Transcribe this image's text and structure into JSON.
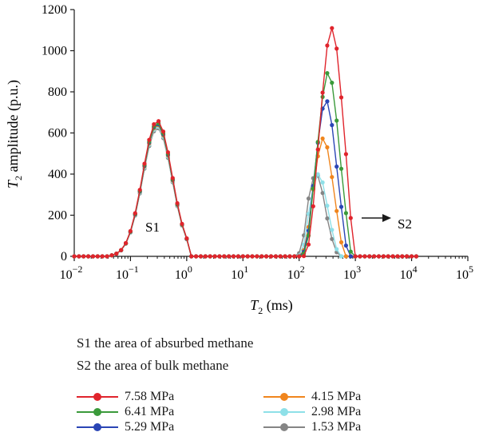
{
  "chart_data": {
    "type": "line",
    "x_scale": "log",
    "xlim": [
      0.01,
      100000
    ],
    "ylim": [
      0,
      1200
    ],
    "x_ticks": [
      {
        "value": 0.01,
        "base": "10",
        "exp": "−2"
      },
      {
        "value": 0.1,
        "base": "10",
        "exp": "−1"
      },
      {
        "value": 1,
        "base": "10",
        "exp": "0"
      },
      {
        "value": 10,
        "base": "10",
        "exp": "1"
      },
      {
        "value": 100,
        "base": "10",
        "exp": "2"
      },
      {
        "value": 1000,
        "base": "10",
        "exp": "3"
      },
      {
        "value": 10000,
        "base": "10",
        "exp": "4"
      },
      {
        "value": 100000,
        "base": "10",
        "exp": "5"
      }
    ],
    "y_ticks": [
      "0",
      "200",
      "400",
      "600",
      "800",
      "1000",
      "1200"
    ],
    "xlabel": {
      "main": "T",
      "sub": "2",
      "rest": " (ms)"
    },
    "ylabel": {
      "main": "T",
      "sub": "2",
      "rest": " amplitude (p.u.)"
    },
    "annotations": {
      "s1": "S1",
      "s2": "S2"
    },
    "series": [
      {
        "name": "7.58 MPa",
        "color": "#e0242c",
        "s1": {
          "peak_x": 0.3,
          "peak_y": 660,
          "width": 0.26
        },
        "s2": {
          "peak_x": 380,
          "peak_y": 1110,
          "width": 0.2,
          "start": 120,
          "end": 1000
        }
      },
      {
        "name": "6.41 MPa",
        "color": "#3a9a3a",
        "s1": {
          "peak_x": 0.3,
          "peak_y": 650,
          "width": 0.26
        },
        "s2": {
          "peak_x": 330,
          "peak_y": 895,
          "width": 0.19,
          "start": 110,
          "end": 880
        }
      },
      {
        "name": "5.29 MPa",
        "color": "#2a45b5",
        "s1": {
          "peak_x": 0.3,
          "peak_y": 645,
          "width": 0.26
        },
        "s2": {
          "peak_x": 300,
          "peak_y": 760,
          "width": 0.18,
          "start": 105,
          "end": 780
        }
      },
      {
        "name": "4.15 MPa",
        "color": "#f0851d",
        "s1": {
          "peak_x": 0.3,
          "peak_y": 640,
          "width": 0.26
        },
        "s2": {
          "peak_x": 270,
          "peak_y": 575,
          "width": 0.17,
          "start": 100,
          "end": 680
        }
      },
      {
        "name": "2.98 MPa",
        "color": "#8ee0e8",
        "s1": {
          "peak_x": 0.3,
          "peak_y": 632,
          "width": 0.26
        },
        "s2": {
          "peak_x": 220,
          "peak_y": 400,
          "width": 0.16,
          "start": 95,
          "end": 560
        }
      },
      {
        "name": "1.53 MPa",
        "color": "#858585",
        "s1": {
          "peak_x": 0.3,
          "peak_y": 625,
          "width": 0.26
        },
        "s2": {
          "peak_x": 200,
          "peak_y": 400,
          "width": 0.16,
          "start": 90,
          "end": 560
        }
      }
    ]
  },
  "notes": [
    "S1 the area of absurbed methane",
    "S2 the area of bulk methane"
  ],
  "legend": [
    {
      "label": "7.58 MPa",
      "color": "#e0242c"
    },
    {
      "label": "4.15 MPa",
      "color": "#f0851d"
    },
    {
      "label": "6.41 MPa",
      "color": "#3a9a3a"
    },
    {
      "label": "2.98 MPa",
      "color": "#8ee0e8"
    },
    {
      "label": "5.29 MPa",
      "color": "#2a45b5"
    },
    {
      "label": "1.53 MPa",
      "color": "#858585"
    }
  ]
}
